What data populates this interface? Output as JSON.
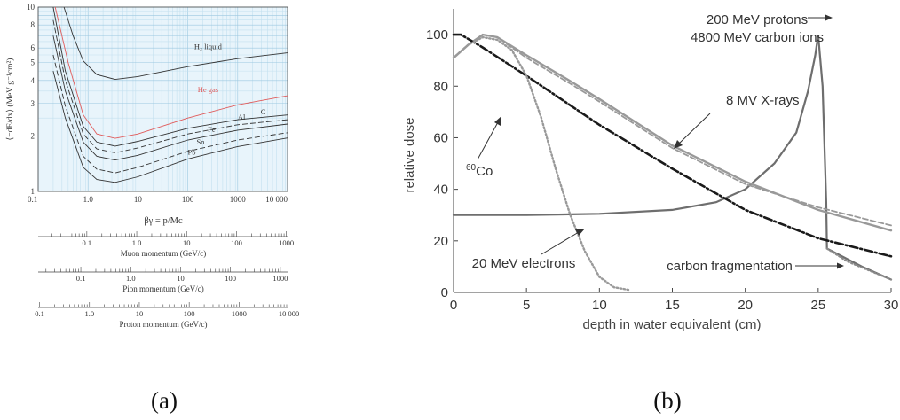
{
  "panel_labels": {
    "a": "(a)",
    "b": "(b)"
  },
  "chart_data": [
    {
      "type": "line",
      "scale": "log-log",
      "xlabel": "βγ = p/Mc",
      "ylabel": "⟨−dE/dx⟩ (MeV g⁻¹cm²)",
      "xlim": [
        0.1,
        10000
      ],
      "ylim": [
        1,
        10
      ],
      "grid": true,
      "x_ticks": [
        "0.1",
        "1.0",
        "10",
        "100",
        "1000",
        "10 000"
      ],
      "y_ticks": [
        "1",
        "2",
        "3",
        "4",
        "5",
        "6",
        "8",
        "10"
      ],
      "series": [
        {
          "name": "H₂ liquid",
          "color": "#333333",
          "dash": "solid",
          "points": [
            [
              0.33,
              10
            ],
            [
              0.5,
              7.0
            ],
            [
              0.8,
              5.1
            ],
            [
              1.5,
              4.3
            ],
            [
              3.5,
              4.05
            ],
            [
              10,
              4.2
            ],
            [
              100,
              4.75
            ],
            [
              1000,
              5.25
            ],
            [
              10000,
              5.65
            ]
          ]
        },
        {
          "name": "He gas",
          "color": "#e05a5a",
          "dash": "solid",
          "points": [
            [
              0.22,
              10
            ],
            [
              0.4,
              5.0
            ],
            [
              0.8,
              2.6
            ],
            [
              1.5,
              2.05
            ],
            [
              3.5,
              1.94
            ],
            [
              10,
              2.05
            ],
            [
              100,
              2.5
            ],
            [
              1000,
              2.95
            ],
            [
              10000,
              3.3
            ]
          ]
        },
        {
          "name": "C",
          "color": "#333333",
          "dash": "solid",
          "points": [
            [
              0.2,
              10
            ],
            [
              0.35,
              4.5
            ],
            [
              0.8,
              2.25
            ],
            [
              1.5,
              1.85
            ],
            [
              3.5,
              1.76
            ],
            [
              10,
              1.87
            ],
            [
              100,
              2.2
            ],
            [
              1000,
              2.45
            ],
            [
              10000,
              2.6
            ]
          ]
        },
        {
          "name": "Al",
          "color": "#333333",
          "dash": "dashed",
          "points": [
            [
              0.2,
              8.5
            ],
            [
              0.35,
              4.0
            ],
            [
              0.8,
              2.05
            ],
            [
              1.5,
              1.7
            ],
            [
              3.5,
              1.62
            ],
            [
              10,
              1.72
            ],
            [
              100,
              2.05
            ],
            [
              1000,
              2.3
            ],
            [
              10000,
              2.45
            ]
          ]
        },
        {
          "name": "Fe",
          "color": "#333333",
          "dash": "solid",
          "points": [
            [
              0.2,
              7.0
            ],
            [
              0.35,
              3.5
            ],
            [
              0.8,
              1.85
            ],
            [
              1.5,
              1.55
            ],
            [
              3.5,
              1.48
            ],
            [
              10,
              1.57
            ],
            [
              100,
              1.9
            ],
            [
              1000,
              2.15
            ],
            [
              10000,
              2.32
            ]
          ]
        },
        {
          "name": "Sn",
          "color": "#333333",
          "dash": "dashed",
          "points": [
            [
              0.2,
              5.5
            ],
            [
              0.35,
              2.9
            ],
            [
              0.8,
              1.55
            ],
            [
              1.5,
              1.32
            ],
            [
              3.5,
              1.26
            ],
            [
              10,
              1.35
            ],
            [
              100,
              1.65
            ],
            [
              1000,
              1.9
            ],
            [
              10000,
              2.08
            ]
          ]
        },
        {
          "name": "Pb",
          "color": "#333333",
          "dash": "solid",
          "points": [
            [
              0.2,
              4.5
            ],
            [
              0.35,
              2.5
            ],
            [
              0.8,
              1.35
            ],
            [
              1.5,
              1.16
            ],
            [
              3.5,
              1.12
            ],
            [
              10,
              1.2
            ],
            [
              100,
              1.5
            ],
            [
              1000,
              1.75
            ],
            [
              10000,
              1.95
            ]
          ]
        }
      ],
      "secondary_axes": [
        {
          "label": "Muon momentum (GeV/c)",
          "ticks": [
            "0.1",
            "1.0",
            "10",
            "100",
            "1000"
          ],
          "tick_values": [
            0.1,
            1,
            10,
            100,
            1000
          ],
          "scale_factor": 0.1057
        },
        {
          "label": "Pion momentum (GeV/c)",
          "ticks": [
            "0.1",
            "1.0",
            "10",
            "100",
            "1000"
          ],
          "tick_values": [
            0.1,
            1,
            10,
            100,
            1000
          ],
          "scale_factor": 0.1396
        },
        {
          "label": "Proton momentum (GeV/c)",
          "ticks": [
            "0.1",
            "1.0",
            "10",
            "100",
            "1000",
            "10 000"
          ],
          "tick_values": [
            0.1,
            1,
            10,
            100,
            1000,
            10000
          ],
          "scale_factor": 0.938
        }
      ]
    },
    {
      "type": "line",
      "xlabel": "depth in water equivalent (cm)",
      "ylabel": "relative dose",
      "xlim": [
        0,
        30
      ],
      "ylim": [
        0,
        110
      ],
      "x_ticks": [
        0,
        5,
        10,
        15,
        20,
        25,
        30
      ],
      "y_ticks": [
        0,
        20,
        40,
        60,
        80,
        100
      ],
      "grid": false,
      "series": [
        {
          "name": "200 MeV protons",
          "color": "#6e6e6e",
          "dash": "solid",
          "points": [
            [
              0,
              30
            ],
            [
              5,
              30
            ],
            [
              10,
              30.5
            ],
            [
              15,
              32
            ],
            [
              18,
              35
            ],
            [
              20,
              40
            ],
            [
              22,
              50
            ],
            [
              23.5,
              62
            ],
            [
              24.3,
              78
            ],
            [
              24.8,
              92
            ],
            [
              25,
              100
            ],
            [
              25.3,
              80
            ],
            [
              25.55,
              35
            ],
            [
              25.6,
              17
            ],
            [
              28,
              10
            ],
            [
              30,
              5
            ]
          ]
        },
        {
          "name": "4800 MeV carbon ions",
          "color": "#8a8a8a",
          "dash": "dotted",
          "points": [
            [
              25.6,
              17
            ],
            [
              27,
              12
            ],
            [
              28.5,
              8.5
            ],
            [
              30,
              5
            ]
          ]
        },
        {
          "name": "8 MV X-rays",
          "color": "#999999",
          "dash": "solid",
          "points": [
            [
              0,
              91
            ],
            [
              1,
              96
            ],
            [
              2,
              100
            ],
            [
              3,
              99
            ],
            [
              5,
              92
            ],
            [
              8,
              82
            ],
            [
              10,
              75
            ],
            [
              15,
              57
            ],
            [
              20,
              43
            ],
            [
              25,
              32
            ],
            [
              30,
              24
            ]
          ]
        },
        {
          "name": "8 MV X-rays (reference)",
          "color": "#999999",
          "dash": "dashed",
          "points": [
            [
              0,
              91
            ],
            [
              1,
              96
            ],
            [
              2,
              100
            ],
            [
              3,
              99
            ],
            [
              5,
              91
            ],
            [
              8,
              81
            ],
            [
              10,
              74
            ],
            [
              15,
              56
            ],
            [
              20,
              42
            ],
            [
              25,
              33
            ],
            [
              30,
              26
            ]
          ]
        },
        {
          "name": "⁶⁰Co",
          "color": "#1a1a1a",
          "dash": "dashdot",
          "points": [
            [
              0,
              100
            ],
            [
              0.5,
              100
            ],
            [
              2,
              95
            ],
            [
              5,
              84
            ],
            [
              10,
              65
            ],
            [
              15,
              48
            ],
            [
              20,
              32
            ],
            [
              25,
              21
            ],
            [
              30,
              14
            ]
          ]
        },
        {
          "name": "20 MeV electrons",
          "color": "#9a9a9a",
          "dash": "dotted",
          "points": [
            [
              0,
              91
            ],
            [
              1,
              96
            ],
            [
              2,
              99
            ],
            [
              3,
              98
            ],
            [
              4,
              94
            ],
            [
              5,
              84
            ],
            [
              6,
              68
            ],
            [
              7,
              48
            ],
            [
              8,
              30
            ],
            [
              9,
              16
            ],
            [
              10,
              6
            ],
            [
              11,
              2
            ],
            [
              12,
              1
            ]
          ]
        }
      ],
      "annotations": {
        "protons": "200 MeV protons",
        "carbon": "4800 MeV carbon ions",
        "xrays": "8 MV X-rays",
        "co_mass": "60",
        "co_symbol": "Co",
        "electrons": "20 MeV electrons",
        "fragmentation": "carbon fragmentation"
      }
    }
  ]
}
